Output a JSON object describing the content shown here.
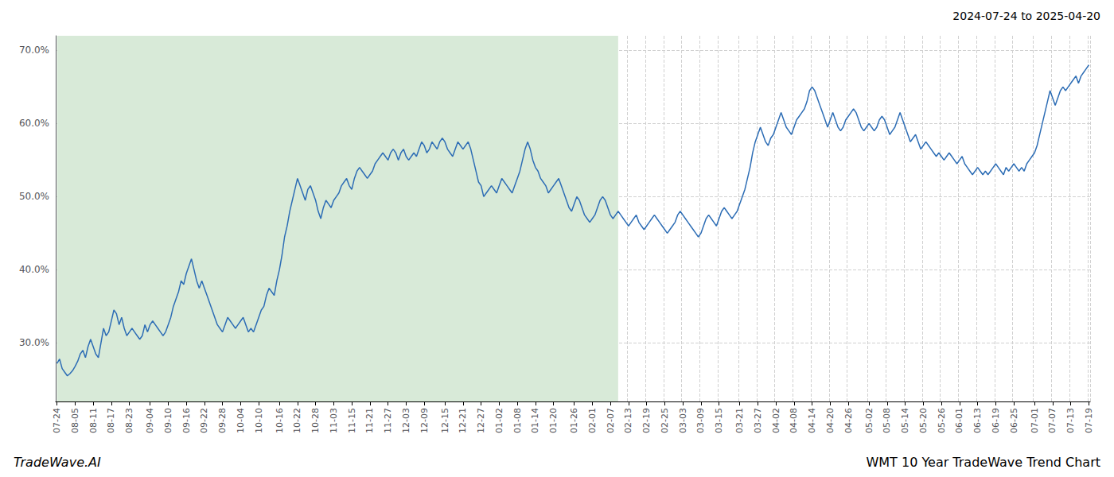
{
  "chart_data": {
    "type": "line",
    "title": "WMT 10 Year TradeWave Trend Chart",
    "subtitle": "2024-07-24 to 2025-04-20",
    "annotations": [
      "TradeWave.AI"
    ],
    "color": "#2d6db5",
    "grid": true,
    "ylim": [
      22,
      72
    ],
    "yticks": [
      {
        "value": 30.0,
        "label": "30.0%"
      },
      {
        "value": 40.0,
        "label": "40.0%"
      },
      {
        "value": 50.0,
        "label": "50.0%"
      },
      {
        "value": 60.0,
        "label": "60.0%"
      },
      {
        "value": 70.0,
        "label": "70.0%"
      }
    ],
    "shaded": {
      "from": 0,
      "to": 217.455,
      "color": "#d8ead8"
    },
    "categories": [
      "07-24",
      null,
      null,
      null,
      null,
      null,
      null,
      "08-05",
      null,
      null,
      null,
      null,
      null,
      null,
      "08-11",
      null,
      null,
      null,
      null,
      null,
      null,
      "08-17",
      null,
      null,
      null,
      null,
      null,
      null,
      "08-23",
      null,
      null,
      null,
      null,
      null,
      null,
      null,
      "09-04",
      null,
      null,
      null,
      null,
      null,
      null,
      "09-10",
      null,
      null,
      null,
      null,
      null,
      null,
      "09-16",
      null,
      null,
      null,
      null,
      null,
      null,
      "09-22",
      null,
      null,
      null,
      null,
      null,
      null,
      "09-28",
      null,
      null,
      null,
      null,
      null,
      null,
      "10-04",
      null,
      null,
      null,
      null,
      null,
      null,
      "10-10",
      null,
      null,
      null,
      null,
      null,
      null,
      null,
      "10-16",
      null,
      null,
      null,
      null,
      null,
      null,
      "10-22",
      null,
      null,
      null,
      null,
      null,
      null,
      "10-28",
      null,
      null,
      null,
      null,
      null,
      null,
      "11-03",
      null,
      null,
      null,
      null,
      null,
      null,
      "11-15",
      null,
      null,
      null,
      null,
      null,
      null,
      "11-21",
      null,
      null,
      null,
      null,
      null,
      null,
      "11-27",
      null,
      null,
      null,
      null,
      null,
      null,
      "12-03",
      null,
      null,
      null,
      null,
      null,
      null,
      "12-09",
      null,
      null,
      null,
      null,
      null,
      null,
      null,
      "12-15",
      null,
      null,
      null,
      null,
      null,
      null,
      "12-21",
      null,
      null,
      null,
      null,
      null,
      null,
      "12-27",
      null,
      null,
      null,
      null,
      null,
      null,
      "01-02",
      null,
      null,
      null,
      null,
      null,
      null,
      "01-08",
      null,
      null,
      null,
      null,
      null,
      null,
      "01-14",
      null,
      null,
      null,
      null,
      null,
      null,
      "01-20",
      null,
      null,
      null,
      null,
      null,
      null,
      null,
      "01-26",
      null,
      null,
      null,
      null,
      null,
      null,
      "02-01",
      null,
      null,
      null,
      null,
      null,
      null,
      "02-07",
      null,
      null,
      null,
      null,
      null,
      null,
      "02-13",
      null,
      null,
      null,
      null,
      null,
      null,
      "02-19",
      null,
      null,
      null,
      null,
      null,
      null,
      "02-25",
      null,
      null,
      null,
      null,
      null,
      null,
      "03-03",
      null,
      null,
      null,
      null,
      null,
      null,
      "03-09",
      null,
      null,
      null,
      null,
      null,
      null,
      "03-15",
      null,
      null,
      null,
      null,
      null,
      null,
      null,
      "03-21",
      null,
      null,
      null,
      null,
      null,
      null,
      "03-27",
      null,
      null,
      null,
      null,
      null,
      null,
      "04-02",
      null,
      null,
      null,
      null,
      null,
      null,
      "04-08",
      null,
      null,
      null,
      null,
      null,
      null,
      "04-14",
      null,
      null,
      null,
      null,
      null,
      null,
      "04-20",
      null,
      null,
      null,
      null,
      null,
      null,
      "04-26",
      null,
      null,
      null,
      null,
      null,
      null,
      null,
      "05-02",
      null,
      null,
      null,
      null,
      null,
      null,
      "05-08",
      null,
      null,
      null,
      null,
      null,
      null,
      "05-14",
      null,
      null,
      null,
      null,
      null,
      null,
      "05-20",
      null,
      null,
      null,
      null,
      null,
      null,
      "05-26",
      null,
      null,
      null,
      null,
      null,
      null,
      "06-01",
      null,
      null,
      null,
      null,
      null,
      null,
      "06-13",
      null,
      null,
      null,
      null,
      null,
      null,
      "06-19",
      null,
      null,
      null,
      null,
      null,
      null,
      "06-25",
      null,
      null,
      null,
      null,
      null,
      null,
      null,
      "07-01",
      null,
      null,
      null,
      null,
      null,
      null,
      "07-07",
      null,
      null,
      null,
      null,
      null,
      null,
      "07-13",
      null,
      null,
      null,
      null,
      null,
      null,
      "07-19"
    ],
    "values": [
      27.2,
      27.8,
      26.5,
      26.0,
      25.5,
      25.8,
      26.2,
      26.8,
      27.5,
      28.5,
      29.0,
      28.0,
      29.5,
      30.5,
      29.5,
      28.5,
      28.0,
      30.0,
      32.0,
      31.0,
      31.5,
      33.0,
      34.5,
      34.0,
      32.5,
      33.5,
      32.0,
      31.0,
      31.5,
      32.0,
      31.5,
      31.0,
      30.5,
      31.0,
      32.5,
      31.5,
      32.5,
      33.0,
      32.5,
      32.0,
      31.5,
      31.0,
      31.5,
      32.5,
      33.5,
      35.0,
      36.0,
      37.0,
      38.5,
      38.0,
      39.5,
      40.5,
      41.5,
      40.0,
      38.5,
      37.5,
      38.5,
      37.5,
      36.5,
      35.5,
      34.5,
      33.5,
      32.5,
      32.0,
      31.5,
      32.5,
      33.5,
      33.0,
      32.5,
      32.0,
      32.5,
      33.0,
      33.5,
      32.5,
      31.5,
      32.0,
      31.5,
      32.5,
      33.5,
      34.5,
      35.0,
      36.5,
      37.5,
      37.0,
      36.5,
      38.5,
      40.0,
      42.0,
      44.5,
      46.0,
      48.0,
      49.5,
      51.0,
      52.5,
      51.5,
      50.5,
      49.5,
      51.0,
      51.5,
      50.5,
      49.5,
      48.0,
      47.0,
      48.5,
      49.5,
      49.0,
      48.5,
      49.5,
      50.0,
      50.5,
      51.5,
      52.0,
      52.5,
      51.5,
      51.0,
      52.5,
      53.5,
      54.0,
      53.5,
      53.0,
      52.5,
      53.0,
      53.5,
      54.5,
      55.0,
      55.5,
      56.0,
      55.5,
      55.0,
      56.0,
      56.5,
      56.0,
      55.0,
      56.0,
      56.5,
      55.5,
      55.0,
      55.5,
      56.0,
      55.5,
      56.5,
      57.5,
      57.0,
      56.0,
      56.5,
      57.5,
      57.0,
      56.5,
      57.5,
      58.0,
      57.5,
      56.5,
      56.0,
      55.5,
      56.5,
      57.5,
      57.0,
      56.5,
      57.0,
      57.5,
      56.5,
      55.0,
      53.5,
      52.0,
      51.5,
      50.0,
      50.5,
      51.0,
      51.5,
      51.0,
      50.5,
      51.5,
      52.5,
      52.0,
      51.5,
      51.0,
      50.5,
      51.5,
      52.5,
      53.5,
      55.0,
      56.5,
      57.5,
      56.5,
      55.0,
      54.0,
      53.5,
      52.5,
      52.0,
      51.5,
      50.5,
      51.0,
      51.5,
      52.0,
      52.5,
      51.5,
      50.5,
      49.5,
      48.5,
      48.0,
      49.0,
      50.0,
      49.5,
      48.5,
      47.5,
      47.0,
      46.5,
      47.0,
      47.5,
      48.5,
      49.5,
      50.0,
      49.5,
      48.5,
      47.5,
      47.0,
      47.5,
      48.0,
      47.5,
      47.0,
      46.5,
      46.0,
      46.5,
      47.0,
      47.5,
      46.5,
      46.0,
      45.5,
      46.0,
      46.5,
      47.0,
      47.5,
      47.0,
      46.5,
      46.0,
      45.5,
      45.0,
      45.5,
      46.0,
      46.5,
      47.5,
      48.0,
      47.5,
      47.0,
      46.5,
      46.0,
      45.5,
      45.0,
      44.5,
      45.0,
      46.0,
      47.0,
      47.5,
      47.0,
      46.5,
      46.0,
      47.0,
      48.0,
      48.5,
      48.0,
      47.5,
      47.0,
      47.5,
      48.0,
      49.0,
      50.0,
      51.0,
      52.5,
      54.0,
      56.0,
      57.5,
      58.5,
      59.5,
      58.5,
      57.5,
      57.0,
      58.0,
      58.5,
      59.5,
      60.5,
      61.5,
      60.5,
      59.5,
      59.0,
      58.5,
      59.5,
      60.5,
      61.0,
      61.5,
      62.0,
      63.0,
      64.5,
      65.0,
      64.5,
      63.5,
      62.5,
      61.5,
      60.5,
      59.5,
      60.5,
      61.5,
      60.5,
      59.5,
      59.0,
      59.5,
      60.5,
      61.0,
      61.5,
      62.0,
      61.5,
      60.5,
      59.5,
      59.0,
      59.5,
      60.0,
      59.5,
      59.0,
      59.5,
      60.5,
      61.0,
      60.5,
      59.5,
      58.5,
      59.0,
      59.5,
      60.5,
      61.5,
      60.5,
      59.5,
      58.5,
      57.5,
      58.0,
      58.5,
      57.5,
      56.5,
      57.0,
      57.5,
      57.0,
      56.5,
      56.0,
      55.5,
      56.0,
      55.5,
      55.0,
      55.5,
      56.0,
      55.5,
      55.0,
      54.5,
      55.0,
      55.5,
      54.5,
      54.0,
      53.5,
      53.0,
      53.5,
      54.0,
      53.5,
      53.0,
      53.5,
      53.0,
      53.5,
      54.0,
      54.5,
      54.0,
      53.5,
      53.0,
      54.0,
      53.5,
      54.0,
      54.5,
      54.0,
      53.5,
      54.0,
      53.5,
      54.5,
      55.0,
      55.5,
      56.0,
      57.0,
      58.5,
      60.0,
      61.5,
      63.0,
      64.5,
      63.5,
      62.5,
      63.5,
      64.5,
      65.0,
      64.5,
      65.0,
      65.5,
      66.0,
      66.5,
      65.5,
      66.5,
      67.0,
      67.5,
      68.0
    ]
  }
}
